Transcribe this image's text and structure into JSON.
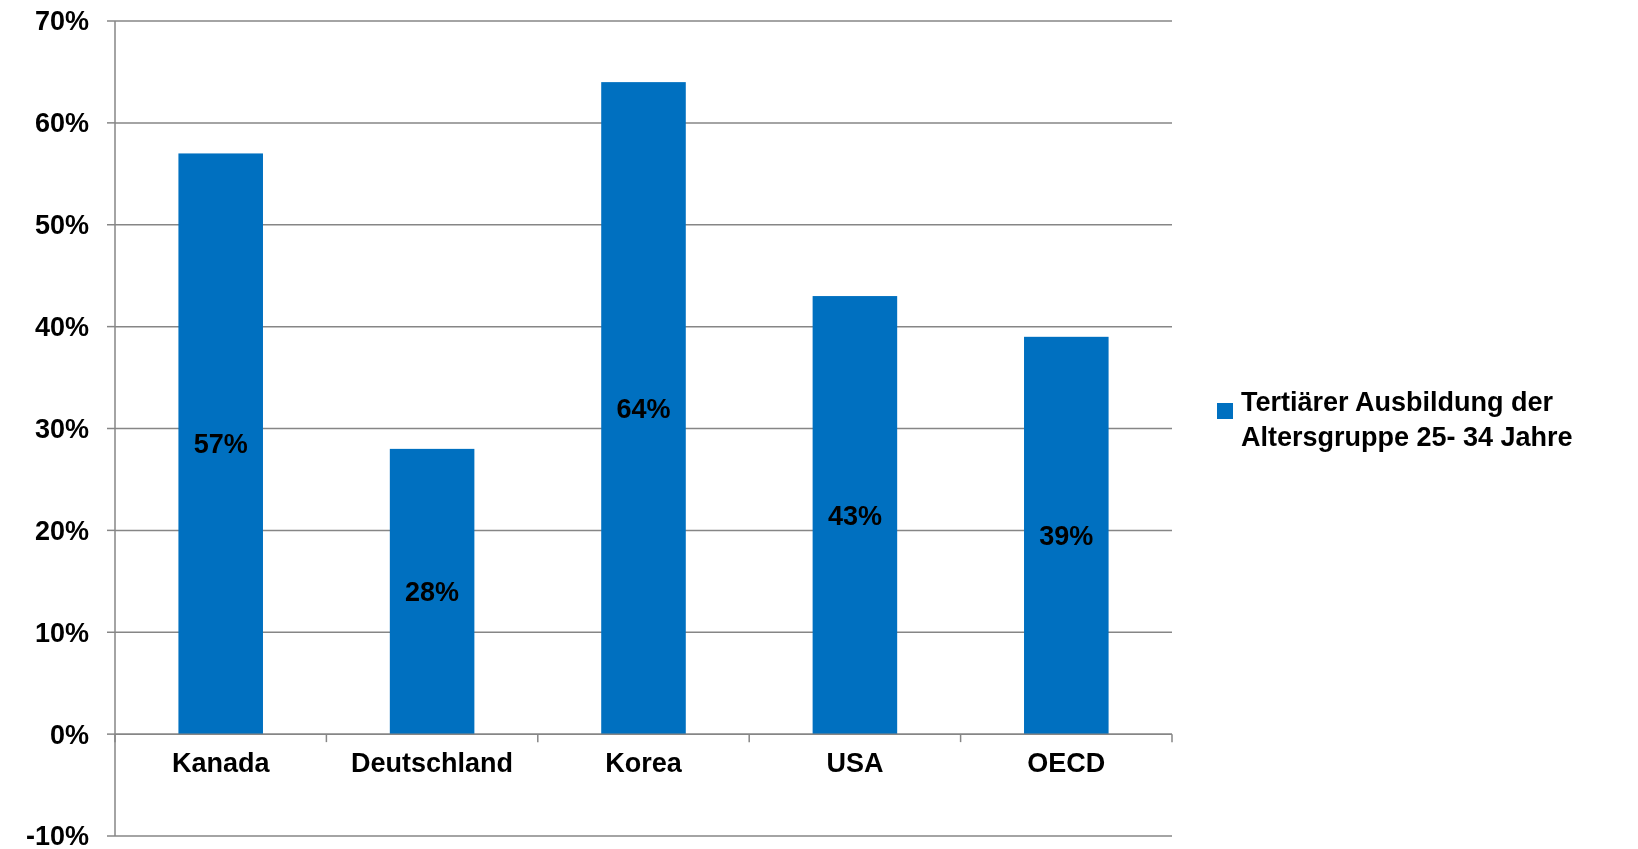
{
  "chart_data": {
    "type": "bar",
    "categories": [
      "Kanada",
      "Deutschland",
      "Korea",
      "USA",
      "OECD"
    ],
    "series": [
      {
        "name": "Tertiärer Ausbildung der Altersgruppe 25- 34 Jahre",
        "color": "#0070c0",
        "values": [
          57,
          28,
          64,
          43,
          39
        ],
        "value_labels": [
          "57%",
          "28%",
          "64%",
          "43%",
          "39%"
        ]
      }
    ],
    "ylim": [
      -10,
      70
    ],
    "yticks": [
      {
        "value": -10,
        "label": "-10%"
      },
      {
        "value": 0,
        "label": "0%"
      },
      {
        "value": 10,
        "label": "10%"
      },
      {
        "value": 20,
        "label": "20%"
      },
      {
        "value": 30,
        "label": "30%"
      },
      {
        "value": 40,
        "label": "40%"
      },
      {
        "value": 50,
        "label": "50%"
      },
      {
        "value": 60,
        "label": "60%"
      },
      {
        "value": 70,
        "label": "70%"
      }
    ],
    "grid": "y",
    "legend": "right"
  }
}
